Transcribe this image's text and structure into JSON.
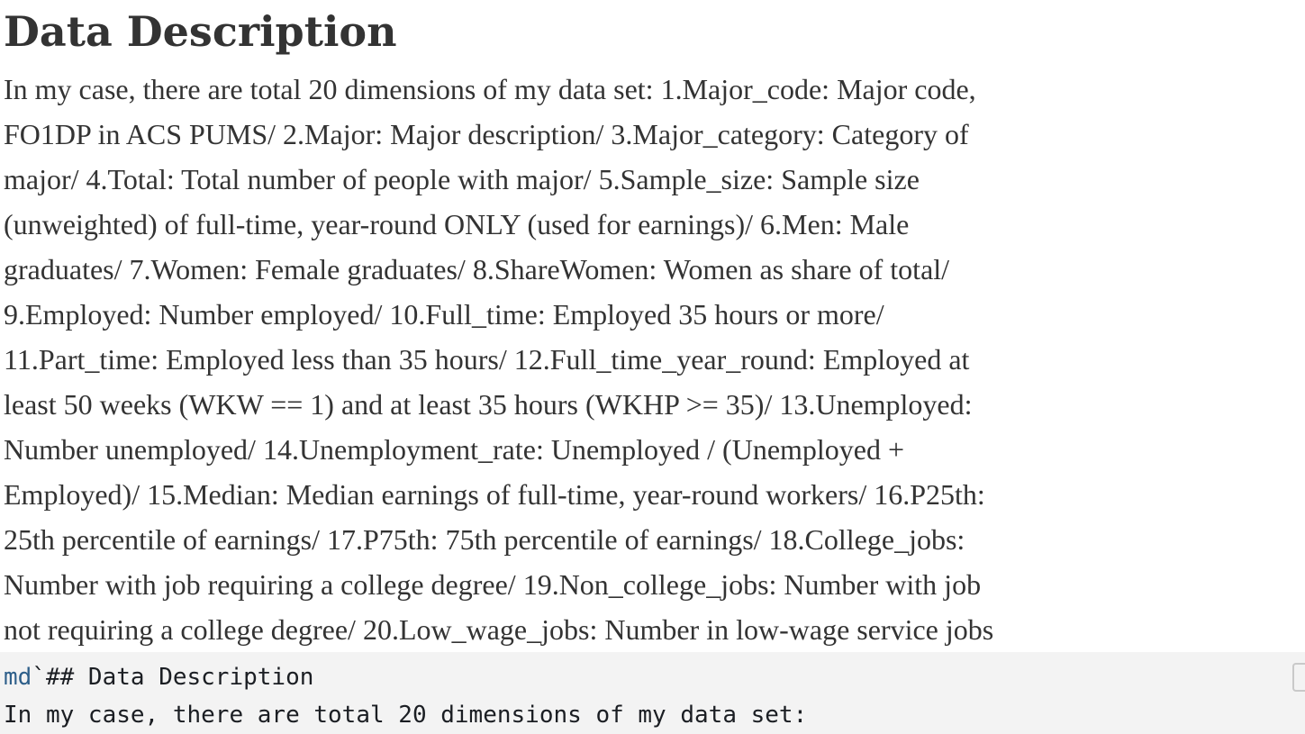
{
  "rendered": {
    "heading": "Data Description",
    "paragraph_lines": [
      "In my case, there are total 20 dimensions of my data set: 1.Major_code: Major code,",
      "FO1DP in ACS PUMS/ 2.Major: Major description/ 3.Major_category: Category of",
      "major/ 4.Total: Total number of people with major/ 5.Sample_size: Sample size",
      "(unweighted) of full-time, year-round ONLY (used for earnings)/ 6.Men: Male",
      "graduates/ 7.Women: Female graduates/ 8.ShareWomen: Women as share of total/",
      "9.Employed: Number employed/ 10.Full_time: Employed 35 hours or more/",
      "11.Part_time: Employed less than 35 hours/ 12.Full_time_year_round: Employed at",
      "least 50 weeks (WKW == 1) and at least 35 hours (WKHP >= 35)/ 13.Unemployed:",
      "Number unemployed/ 14.Unemployment_rate: Unemployed / (Unemployed +",
      "Employed)/ 15.Median: Median earnings of full-time, year-round workers/ 16.P25th:",
      "25th percentile of earnings/ 17.P75th: 75th percentile of earnings/ 18.College_jobs:",
      "Number with job requiring a college degree/ 19.Non_college_jobs: Number with job",
      "not requiring a college degree/ 20.Low_wage_jobs: Number in low-wage service jobs"
    ]
  },
  "code_cell": {
    "tag": "md",
    "line1_rest": "`## Data Description",
    "line2": "In my case, there are total 20 dimensions of my data set:",
    "run_icon": "collapse-cell-icon"
  },
  "colors": {
    "text": "#333333",
    "code_background": "#f3f3f3",
    "md_tag": "#2e5f8a"
  }
}
